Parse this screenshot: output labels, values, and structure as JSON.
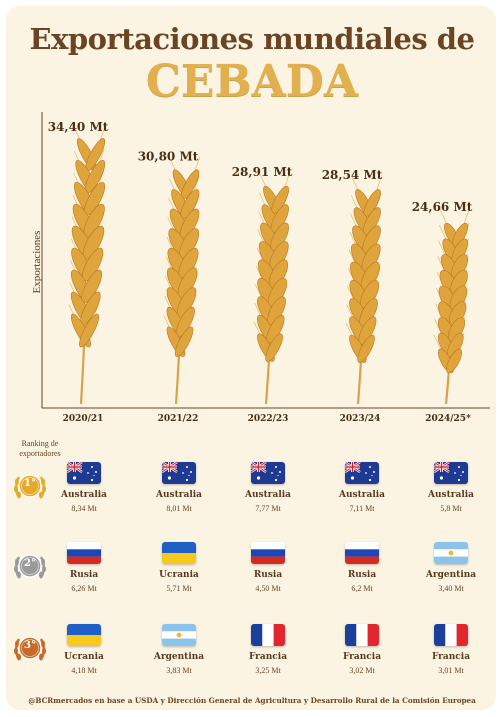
{
  "title_line1": "Exportaciones mundiales de",
  "title_line2": "CEBADA",
  "chart_data": {
    "type": "bar",
    "categories": [
      "2020/21",
      "2021/22",
      "2022/23",
      "2023/24",
      "2024/25*"
    ],
    "values": [
      34.4,
      30.8,
      28.91,
      28.54,
      24.66
    ],
    "value_labels": [
      "34,40 Mt",
      "30,80 Mt",
      "28,91 Mt",
      "28,54 Mt",
      "24,66 Mt"
    ],
    "unit": "Mt",
    "ylabel": "Exportaciones",
    "xlabel": "",
    "ylim": [
      0,
      40
    ],
    "mark": "wheat-ear",
    "colors": {
      "grain": "#e0a43c",
      "grain_dark": "#b87820",
      "stem": "#d9a24a"
    }
  },
  "ranking": {
    "title": "Ranking de exportadores",
    "rows": [
      {
        "medal": "1°",
        "medal_color": "#e7a92b",
        "medal_name": "gold-medal-icon",
        "entries": [
          {
            "country": "Australia",
            "value": "8,34 Mt",
            "flag": "australia"
          },
          {
            "country": "Australia",
            "value": "8,01 Mt",
            "flag": "australia"
          },
          {
            "country": "Australia",
            "value": "7,77 Mt",
            "flag": "australia"
          },
          {
            "country": "Australia",
            "value": "7,11 Mt",
            "flag": "australia"
          },
          {
            "country": "Australia",
            "value": "5,8 Mt",
            "flag": "australia"
          }
        ]
      },
      {
        "medal": "2°",
        "medal_color": "#9a9a9a",
        "medal_name": "silver-medal-icon",
        "entries": [
          {
            "country": "Rusia",
            "value": "6,26 Mt",
            "flag": "russia"
          },
          {
            "country": "Ucrania",
            "value": "5,71 Mt",
            "flag": "ukraine"
          },
          {
            "country": "Rusia",
            "value": "4,50 Mt",
            "flag": "russia"
          },
          {
            "country": "Rusia",
            "value": "6,2 Mt",
            "flag": "russia"
          },
          {
            "country": "Argentina",
            "value": "3,40 Mt",
            "flag": "argentina"
          }
        ]
      },
      {
        "medal": "3°",
        "medal_color": "#c86a2a",
        "medal_name": "bronze-medal-icon",
        "entries": [
          {
            "country": "Ucrania",
            "value": "4,18 Mt",
            "flag": "ukraine"
          },
          {
            "country": "Argentina",
            "value": "3,83 Mt",
            "flag": "argentina"
          },
          {
            "country": "Francia",
            "value": "3,25 Mt",
            "flag": "france"
          },
          {
            "country": "Francia",
            "value": "3,02 Mt",
            "flag": "france"
          },
          {
            "country": "Francia",
            "value": "3,01 Mt",
            "flag": "france"
          }
        ]
      }
    ]
  },
  "footer": "@BCRmercados en base a USDA y Dirección General de Agricultura y Desarrollo Rural de la Comisión Europea"
}
